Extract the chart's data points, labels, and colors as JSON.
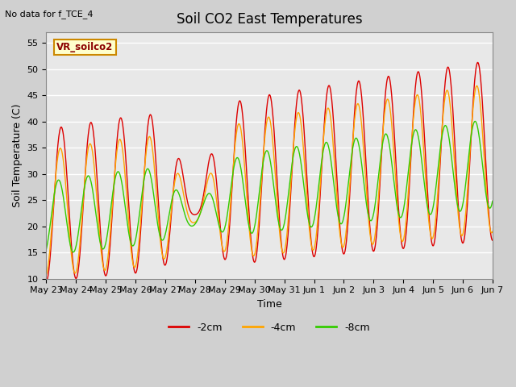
{
  "title": "Soil CO2 East Temperatures",
  "xlabel": "Time",
  "ylabel": "Soil Temperature (C)",
  "annotation": "No data for f_TCE_4",
  "legend_label": "VR_soilco2",
  "series_labels": [
    "-2cm",
    "-4cm",
    "-8cm"
  ],
  "series_colors": [
    "#dd0000",
    "#ffa500",
    "#33cc00"
  ],
  "ylim": [
    10,
    57
  ],
  "yticks": [
    10,
    15,
    20,
    25,
    30,
    35,
    40,
    45,
    50,
    55
  ],
  "axes_bg": "#e8e8e8",
  "fig_bg": "#d0d0d0",
  "title_fontsize": 12,
  "label_fontsize": 9,
  "tick_fontsize": 8,
  "x_tick_labels": [
    "May 23",
    "May 24",
    "May 25",
    "May 26",
    "May 27",
    "May 28",
    "May 29",
    "May 30",
    "May 31",
    "Jun 1",
    "Jun 2",
    "Jun 3",
    "Jun 4",
    "Jun 5",
    "Jun 6",
    "Jun 7"
  ],
  "num_points": 1000,
  "end_day": 15
}
